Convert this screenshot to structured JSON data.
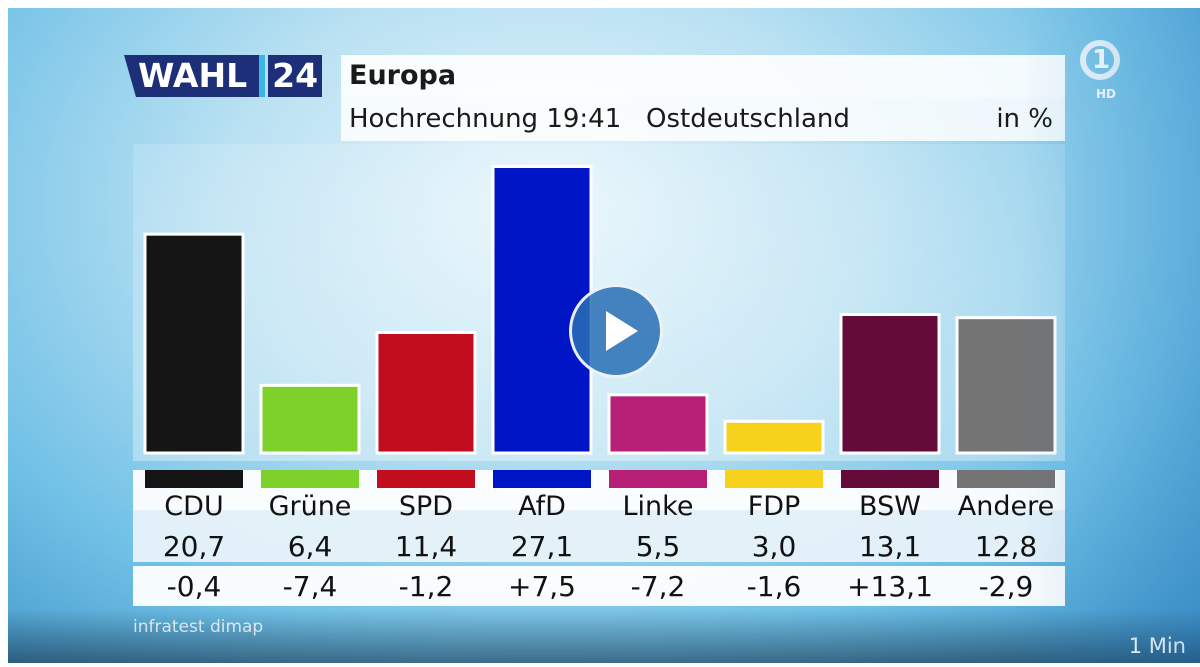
{
  "header": {
    "logo_wahl": "WAHL",
    "logo_24": "24",
    "title": "Europa",
    "subtitle": "Hochrechnung 19:41   Ostdeutschland",
    "unit": "in %"
  },
  "channel": {
    "logo": "1",
    "badge": "HD"
  },
  "source": "infratest dimap",
  "video": {
    "duration": "1 Min"
  },
  "chart_data": {
    "type": "bar",
    "title": "Europa",
    "categories": [
      "CDU",
      "Grüne",
      "SPD",
      "AfD",
      "Linke",
      "FDP",
      "BSW",
      "Andere"
    ],
    "values": [
      20.7,
      6.4,
      11.4,
      27.1,
      5.5,
      3.0,
      13.1,
      12.8
    ],
    "values_label": [
      "20,7",
      "6,4",
      "11,4",
      "27,1",
      "5,5",
      "3,0",
      "13,1",
      "12,8"
    ],
    "changes": [
      -0.4,
      -7.4,
      -1.2,
      7.5,
      -7.2,
      -1.6,
      13.1,
      -2.9
    ],
    "changes_label": [
      "-0,4",
      "-7,4",
      "-1,2",
      "+7,5",
      "-7,2",
      "-1,6",
      "+13,1",
      "-2,9"
    ],
    "colors": [
      "#151515",
      "#7dd12a",
      "#c20d1e",
      "#0015c6",
      "#b81f76",
      "#f6d21d",
      "#650b3a",
      "#747474"
    ],
    "unit": "in %",
    "ylim": [
      0,
      28
    ]
  }
}
